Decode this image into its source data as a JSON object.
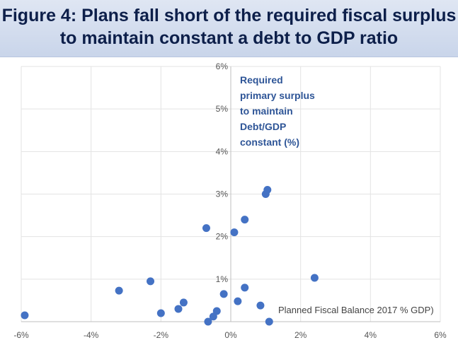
{
  "title": {
    "line1": "Figure 4: Plans fall short of the required fiscal surplus",
    "line2": "to maintain constant a debt to GDP ratio"
  },
  "chart_data": {
    "type": "scatter",
    "xlabel": "Planned Fiscal Balance 2017 % GDP)",
    "ylabel": "Required primary surplus to maintain Debt/GDP constant (%)",
    "ylabel_lines": [
      "Required",
      "primary surplus",
      "to maintain",
      "Debt/GDP",
      "constant (%)"
    ],
    "xlim": [
      -6,
      6
    ],
    "ylim": [
      0,
      6
    ],
    "x_ticks": [
      -6,
      -4,
      -2,
      0,
      2,
      4,
      6
    ],
    "y_ticks": [
      1,
      2,
      3,
      4,
      5,
      6
    ],
    "x_tick_labels": [
      "-6%",
      "-4%",
      "-2%",
      "0%",
      "2%",
      "4%",
      "6%"
    ],
    "y_tick_labels": [
      "1%",
      "2%",
      "3%",
      "4%",
      "5%",
      "6%"
    ],
    "grid": true,
    "marker_color": "#4472c4",
    "points": [
      {
        "x": -5.9,
        "y": 0.15
      },
      {
        "x": -3.2,
        "y": 0.73
      },
      {
        "x": -2.3,
        "y": 0.95
      },
      {
        "x": -2.0,
        "y": 0.2
      },
      {
        "x": -1.5,
        "y": 0.3
      },
      {
        "x": -1.35,
        "y": 0.45
      },
      {
        "x": -0.7,
        "y": 2.2
      },
      {
        "x": -0.65,
        "y": 0.0
      },
      {
        "x": -0.5,
        "y": 0.12
      },
      {
        "x": -0.4,
        "y": 0.25
      },
      {
        "x": -0.2,
        "y": 0.65
      },
      {
        "x": 0.1,
        "y": 2.1
      },
      {
        "x": 0.2,
        "y": 0.48
      },
      {
        "x": 0.4,
        "y": 2.4
      },
      {
        "x": 0.4,
        "y": 0.8
      },
      {
        "x": 0.85,
        "y": 0.38
      },
      {
        "x": 1.0,
        "y": 3.0
      },
      {
        "x": 1.05,
        "y": 3.1
      },
      {
        "x": 1.1,
        "y": 0.0
      },
      {
        "x": 2.4,
        "y": 1.03
      }
    ]
  }
}
